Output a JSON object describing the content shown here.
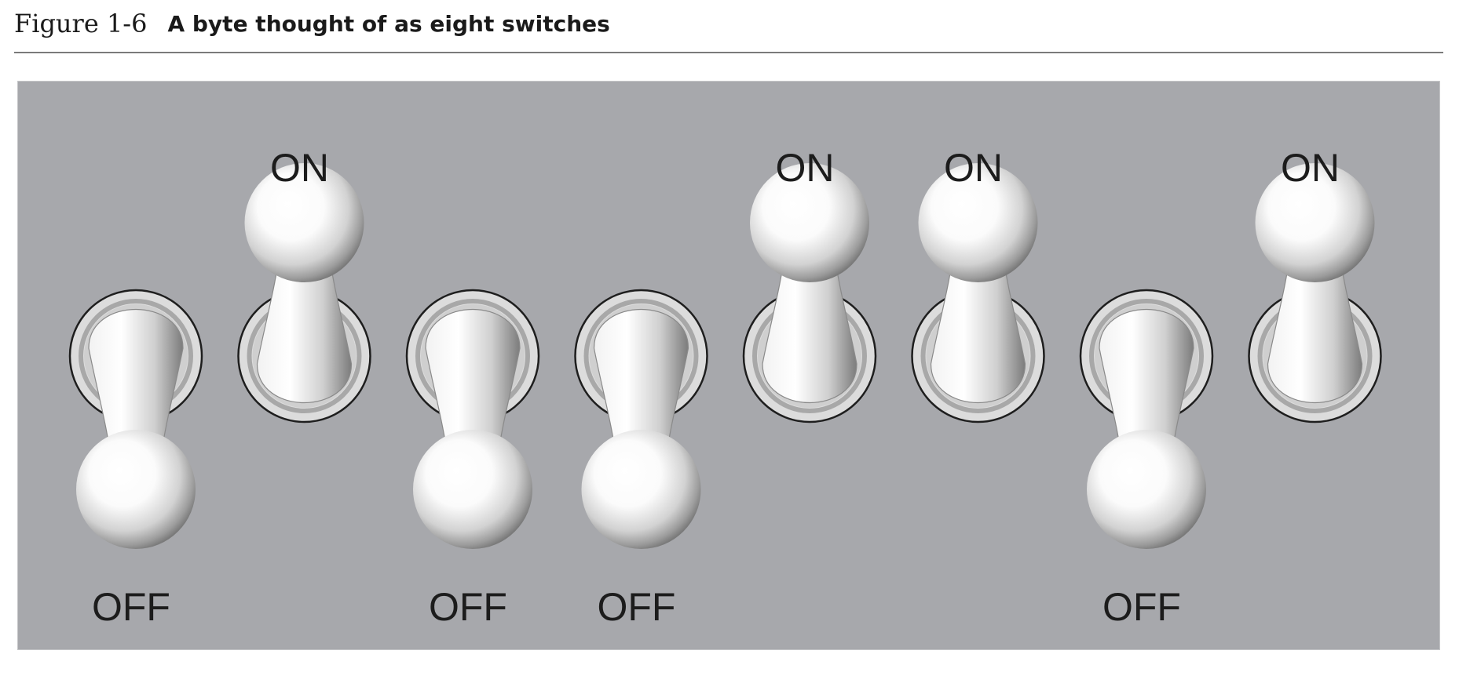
{
  "figure": {
    "number": "Figure 1-6",
    "title": "A byte thought of as eight switches"
  },
  "colors": {
    "panel": "#a7a8ac",
    "label": "#1c1c1c"
  },
  "switches": [
    {
      "state": "off",
      "label": "OFF"
    },
    {
      "state": "on",
      "label": "ON"
    },
    {
      "state": "off",
      "label": "OFF"
    },
    {
      "state": "off",
      "label": "OFF"
    },
    {
      "state": "on",
      "label": "ON"
    },
    {
      "state": "on",
      "label": "ON"
    },
    {
      "state": "off",
      "label": "OFF"
    },
    {
      "state": "on",
      "label": "ON"
    }
  ]
}
